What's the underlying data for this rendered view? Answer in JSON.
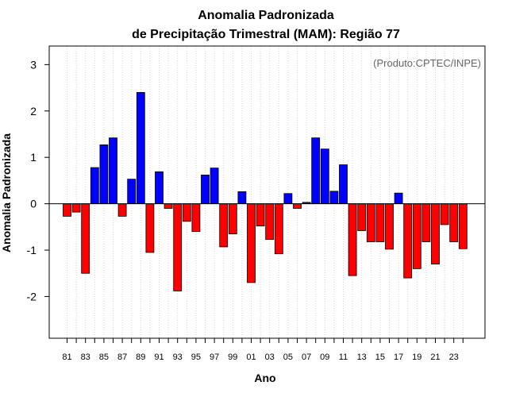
{
  "chart_data": {
    "type": "bar",
    "title_line1": "Anomalia Padronizada",
    "title_line2": "de Precipitação Trimestral (MAM): Região 77",
    "xlabel": "Ano",
    "ylabel": "Anomalia Padronizada",
    "annotation": "(Produto:CPTEC/INPE)",
    "ylim": [
      -2.9,
      3.4
    ],
    "yticks": [
      -2,
      -1,
      0,
      1,
      2,
      3
    ],
    "ytick_labels": [
      "-2",
      "-1",
      "0",
      "1",
      "2",
      "3"
    ],
    "categories": [
      "81",
      "82",
      "83",
      "84",
      "85",
      "86",
      "87",
      "88",
      "89",
      "90",
      "91",
      "92",
      "93",
      "94",
      "95",
      "96",
      "97",
      "98",
      "99",
      "00",
      "01",
      "02",
      "03",
      "04",
      "05",
      "06",
      "07",
      "08",
      "09",
      "10",
      "11",
      "12",
      "13",
      "14",
      "15",
      "16",
      "17",
      "18",
      "19",
      "20",
      "21",
      "22",
      "23",
      "24"
    ],
    "xtick_labels": [
      "81",
      "83",
      "85",
      "87",
      "89",
      "91",
      "93",
      "95",
      "97",
      "99",
      "01",
      "03",
      "05",
      "07",
      "09",
      "11",
      "13",
      "15",
      "17",
      "19",
      "21",
      "23"
    ],
    "values": [
      -0.27,
      -0.18,
      -1.5,
      0.78,
      1.27,
      1.42,
      -0.27,
      0.53,
      2.4,
      -1.05,
      0.69,
      -0.1,
      -1.88,
      -0.38,
      -0.6,
      0.62,
      0.77,
      -0.93,
      -0.65,
      0.26,
      -1.7,
      -0.48,
      -0.77,
      -1.08,
      0.22,
      -0.1,
      0.03,
      1.42,
      1.18,
      0.27,
      0.84,
      -1.55,
      -0.58,
      -0.82,
      -0.82,
      -0.98,
      0.23,
      -1.6,
      -1.4,
      -0.82,
      -1.3,
      -0.45,
      -0.82,
      -0.97
    ],
    "colors": {
      "positive": "#0000ff",
      "negative": "#ff0000",
      "grid": "#d3d3d3"
    },
    "grid": true
  }
}
